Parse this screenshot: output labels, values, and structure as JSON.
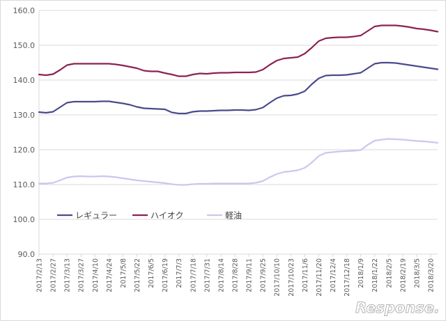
{
  "chart_data": {
    "type": "line",
    "title": "",
    "xlabel": "",
    "ylabel": "",
    "ylim": [
      90,
      160
    ],
    "yticks": [
      "90.0",
      "100.0",
      "110.0",
      "120.0",
      "130.0",
      "140.0",
      "150.0",
      "160.0"
    ],
    "grid": "horizontal",
    "legend_position": "lower-left",
    "x": [
      "2017/2/13",
      "2017/2/20",
      "2017/2/27",
      "2017/3/6",
      "2017/3/13",
      "2017/3/21",
      "2017/3/27",
      "2017/4/3",
      "2017/4/10",
      "2017/4/17",
      "2017/4/24",
      "2017/5/1",
      "2017/5/8",
      "2017/5/15",
      "2017/5/22",
      "2017/5/29",
      "2017/6/5",
      "2017/6/12",
      "2017/6/19",
      "2017/6/26",
      "2017/7/3",
      "2017/7/10",
      "2017/7/18",
      "2017/7/24",
      "2017/7/31",
      "2017/8/7",
      "2017/8/14",
      "2017/8/21",
      "2017/8/28",
      "2017/9/4",
      "2017/9/11",
      "2017/9/19",
      "2017/9/25",
      "2017/10/2",
      "2017/10/10",
      "2017/10/16",
      "2017/10/23",
      "2017/10/30",
      "2017/11/6",
      "2017/11/13",
      "2017/11/20",
      "2017/11/27",
      "2017/12/4",
      "2017/12/11",
      "2017/12/18",
      "2017/12/25",
      "2018/1/9",
      "2018/1/15",
      "2018/1/22",
      "2018/1/29",
      "2018/2/5",
      "2018/2/13",
      "2018/2/19",
      "2018/2/26",
      "2018/3/5",
      "2018/3/12",
      "2018/3/20",
      "2018/3/26"
    ],
    "xtick_labels": [
      "2017/2/13",
      "2017/2/27",
      "2017/3/13",
      "2017/3/27",
      "2017/4/10",
      "2017/4/24",
      "2017/5/8",
      "2017/5/22",
      "2017/6/5",
      "2017/6/19",
      "2017/7/3",
      "2017/7/18",
      "2017/7/31",
      "2017/8/14",
      "2017/8/28",
      "2017/9/11",
      "2017/9/25",
      "2017/10/10",
      "2017/10/23",
      "2017/11/6",
      "2017/11/20",
      "2017/12/4",
      "2017/12/18",
      "2018/1/9",
      "2018/1/22",
      "2018/2/5",
      "2018/2/19",
      "2018/3/5",
      "2018/3/20"
    ],
    "series": [
      {
        "name": "レギュラー",
        "color": "#4a4a8c",
        "values": [
          130.8,
          130.6,
          130.9,
          132.2,
          133.5,
          133.8,
          133.8,
          133.8,
          133.8,
          133.9,
          133.9,
          133.6,
          133.3,
          132.9,
          132.3,
          131.9,
          131.8,
          131.7,
          131.6,
          130.7,
          130.4,
          130.4,
          130.9,
          131.1,
          131.1,
          131.2,
          131.3,
          131.3,
          131.4,
          131.4,
          131.3,
          131.5,
          132.1,
          133.5,
          134.8,
          135.5,
          135.6,
          136.0,
          136.8,
          138.8,
          140.5,
          141.3,
          141.4,
          141.4,
          141.5,
          141.8,
          142.1,
          143.4,
          144.7,
          145.0,
          145.0,
          144.9,
          144.6,
          144.3,
          144.0,
          143.7,
          143.4,
          143.1
        ]
      },
      {
        "name": "ハイオク",
        "color": "#8b2252",
        "values": [
          141.6,
          141.4,
          141.7,
          142.9,
          144.3,
          144.7,
          144.7,
          144.7,
          144.7,
          144.7,
          144.7,
          144.5,
          144.2,
          143.8,
          143.4,
          142.7,
          142.5,
          142.5,
          142.0,
          141.6,
          141.1,
          141.1,
          141.6,
          141.9,
          141.8,
          142.0,
          142.1,
          142.1,
          142.2,
          142.2,
          142.2,
          142.3,
          143.0,
          144.4,
          145.6,
          146.2,
          146.4,
          146.6,
          147.6,
          149.3,
          151.2,
          152.0,
          152.2,
          152.3,
          152.3,
          152.5,
          152.8,
          154.1,
          155.4,
          155.7,
          155.7,
          155.7,
          155.5,
          155.2,
          154.8,
          154.6,
          154.3,
          153.9
        ]
      },
      {
        "name": "軽油",
        "color": "#c8c8f0",
        "values": [
          110.3,
          110.3,
          110.5,
          111.2,
          112.0,
          112.3,
          112.4,
          112.3,
          112.3,
          112.4,
          112.3,
          112.1,
          111.8,
          111.5,
          111.2,
          111.0,
          110.8,
          110.6,
          110.4,
          110.1,
          109.9,
          109.9,
          110.1,
          110.2,
          110.2,
          110.3,
          110.3,
          110.3,
          110.3,
          110.3,
          110.3,
          110.5,
          111.0,
          112.1,
          113.0,
          113.6,
          113.8,
          114.1,
          114.8,
          116.3,
          118.2,
          119.1,
          119.3,
          119.5,
          119.6,
          119.7,
          119.9,
          121.4,
          122.6,
          122.9,
          123.1,
          123.0,
          122.9,
          122.7,
          122.5,
          122.4,
          122.2,
          122.0
        ]
      }
    ]
  },
  "watermark": "Response."
}
